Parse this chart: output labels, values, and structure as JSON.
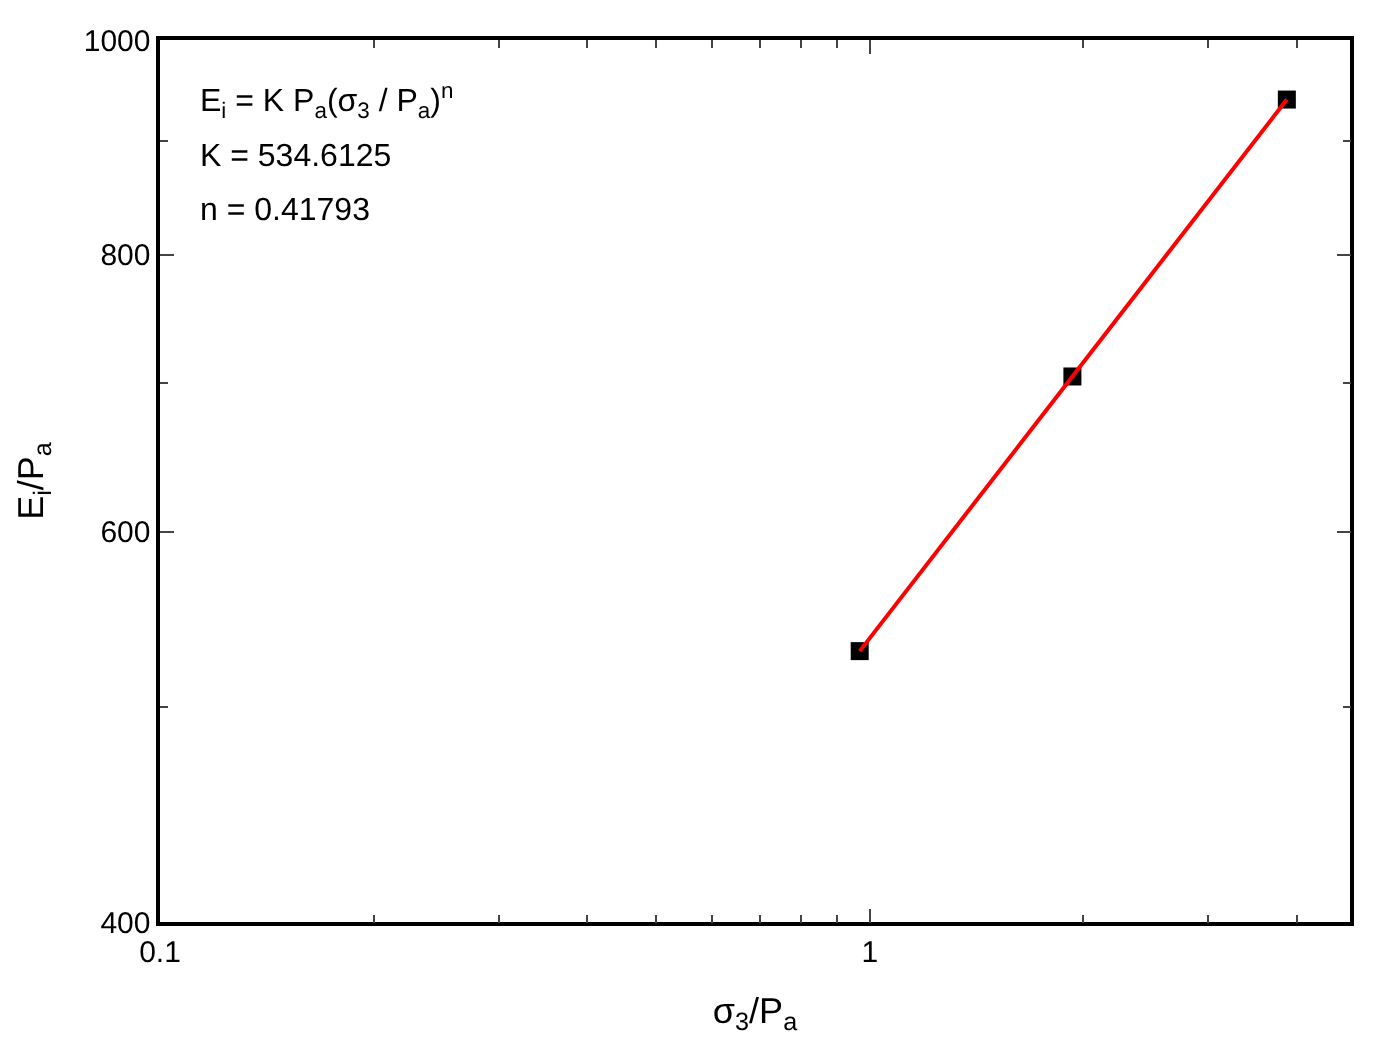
{
  "chart_data": {
    "type": "scatter",
    "log": "xy",
    "xlabel": "σ$_{3}$/P$_{a}$",
    "ylabel": "E$_{i}$/P$_{a}$",
    "xlim": [
      0.1,
      4.75
    ],
    "xticks": [
      0.1,
      1
    ],
    "ylim": [
      400,
      1000
    ],
    "yticks": [
      400,
      600,
      800,
      1000
    ],
    "annotations": [
      "E$_{i}$ = K P$_{a}$(σ$_{3}$ / P$_{a}$)$^{n}$",
      "K = 534.6125",
      "n = 0.41793"
    ],
    "series": [
      {
        "color": "#000000",
        "marker": "square",
        "x": [
          0.968,
          1.93,
          3.87
        ],
        "values": [
          530,
          705,
          940
        ]
      },
      {
        "type": "line",
        "color": "#ff0000",
        "marker": "none",
        "line_style": "solid",
        "x": [
          0.968,
          1.93,
          3.87
        ],
        "values": [
          530,
          705,
          940
        ]
      }
    ]
  }
}
